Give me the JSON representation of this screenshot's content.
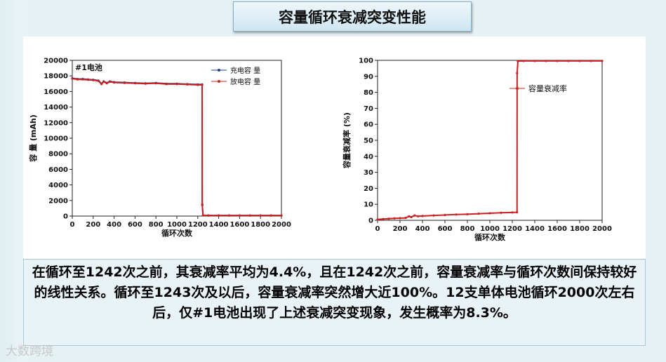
{
  "slide": {
    "title": "容量循环衰减突变性能",
    "description": "在循环至1242次之前，其衰减率平均为4.4%，且在1242次之前，容量衰减率与循环次数间保持较好的线性关系。循环至1243次及以后，容量衰减率突然增大近100%。12支单体电池循环2000次左右后，仅#1电池出现了上述衰减突变现象，发生概率为8.3%。",
    "watermark": "大数跨境"
  },
  "chart_data": [
    {
      "type": "scatter",
      "annotation": "#1电池",
      "xlabel": "循环次数",
      "ylabel": "容 量 (mAh)",
      "xlim": [
        0,
        2000
      ],
      "ylim": [
        0,
        20000
      ],
      "xticks": [
        0,
        200,
        400,
        600,
        800,
        1000,
        1200,
        1400,
        1600,
        1800,
        2000
      ],
      "yticks": [
        0,
        2000,
        4000,
        6000,
        8000,
        10000,
        12000,
        14000,
        16000,
        18000,
        20000
      ],
      "legend_position": "top-right",
      "series": [
        {
          "name": "充电容 量",
          "color": "#1f3f8f",
          "x": [
            0,
            50,
            100,
            150,
            200,
            250,
            280,
            300,
            330,
            360,
            400,
            500,
            600,
            700,
            800,
            900,
            1000,
            1100,
            1200,
            1242,
            1243,
            1250,
            1300,
            1400,
            1500,
            1600,
            1700,
            1800,
            1900,
            2000
          ],
          "y": [
            17700,
            17600,
            17600,
            17550,
            17500,
            17400,
            17000,
            17300,
            17100,
            17300,
            17200,
            17150,
            17100,
            17050,
            17100,
            17000,
            17000,
            16950,
            16900,
            16900,
            1500,
            100,
            80,
            80,
            80,
            80,
            80,
            80,
            80,
            80
          ]
        },
        {
          "name": "放电容 量",
          "color": "#cc2020",
          "x": [
            0,
            50,
            100,
            150,
            200,
            250,
            280,
            300,
            330,
            360,
            400,
            500,
            600,
            700,
            800,
            900,
            1000,
            1100,
            1200,
            1242,
            1243,
            1250,
            1300,
            1400,
            1500,
            1600,
            1700,
            1800,
            1900,
            2000
          ],
          "y": [
            17650,
            17550,
            17550,
            17500,
            17450,
            17350,
            16950,
            17250,
            17050,
            17250,
            17150,
            17100,
            17050,
            17000,
            17050,
            16950,
            16950,
            16900,
            16850,
            16850,
            1400,
            90,
            70,
            70,
            70,
            70,
            70,
            70,
            70,
            70
          ]
        }
      ]
    },
    {
      "type": "scatter",
      "xlabel": "循环次数",
      "ylabel": "容量衰减率 (%)",
      "xlim": [
        0,
        2000
      ],
      "ylim": [
        0,
        100
      ],
      "xticks": [
        0,
        200,
        400,
        600,
        800,
        1000,
        1200,
        1400,
        1600,
        1800,
        2000
      ],
      "yticks": [
        0,
        10,
        20,
        30,
        40,
        50,
        60,
        70,
        80,
        90,
        100
      ],
      "legend_position": "upper-right",
      "series": [
        {
          "name": "容量衰减率",
          "color": "#cc2020",
          "x": [
            0,
            50,
            100,
            150,
            200,
            250,
            280,
            300,
            330,
            360,
            400,
            500,
            600,
            700,
            800,
            900,
            1000,
            1100,
            1200,
            1242,
            1243,
            1250,
            1300,
            1400,
            1500,
            1600,
            1700,
            1800,
            1900,
            2000
          ],
          "y": [
            0.5,
            0.8,
            1.0,
            1.2,
            1.3,
            1.5,
            2.5,
            2.0,
            3.0,
            2.5,
            2.7,
            3.0,
            3.3,
            3.6,
            3.8,
            4.1,
            4.4,
            4.7,
            4.9,
            5.0,
            92,
            99.5,
            99.6,
            99.6,
            99.6,
            99.6,
            99.6,
            99.6,
            99.6,
            99.6
          ]
        }
      ]
    }
  ]
}
